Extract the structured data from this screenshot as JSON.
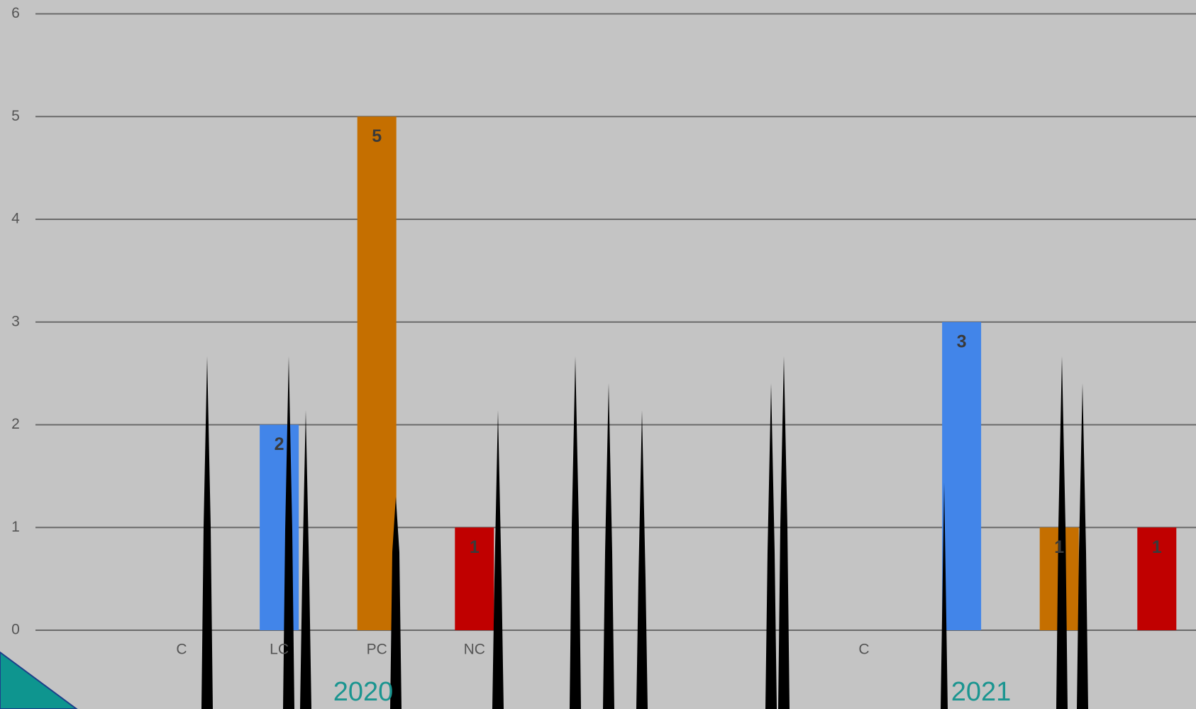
{
  "chart_data": {
    "type": "bar",
    "categories": [
      "C",
      "LC",
      "PC",
      "NC",
      "C",
      null,
      null,
      null
    ],
    "groups": [
      "2020",
      "2021"
    ],
    "values": [
      null,
      2,
      5,
      1,
      null,
      3,
      1,
      1
    ],
    "colors": [
      null,
      "#4285e9",
      "#c56f00",
      "#c00000",
      null,
      "#4285e9",
      "#c56f00",
      "#c00000"
    ],
    "ylim": [
      0,
      6
    ],
    "yticks": [
      0,
      1,
      2,
      3,
      4,
      5,
      6
    ],
    "grid": true
  }
}
